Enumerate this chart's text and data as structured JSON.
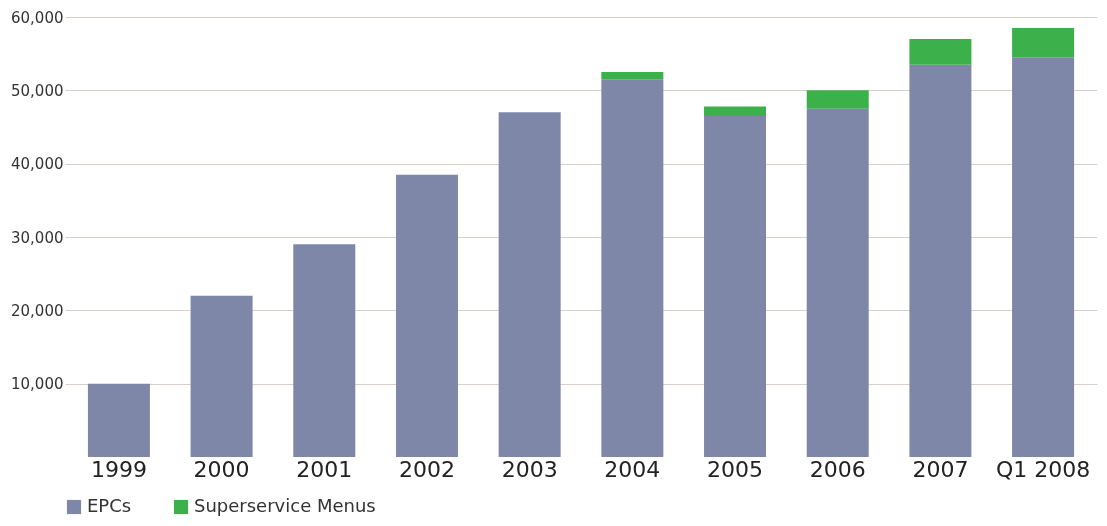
{
  "chart_data": {
    "type": "bar",
    "stacked": true,
    "categories": [
      "1999",
      "2000",
      "2001",
      "2002",
      "2003",
      "2004",
      "2005",
      "2006",
      "2007",
      "Q1 2008"
    ],
    "series": [
      {
        "name": "EPCs",
        "color": "#7e87a8",
        "values": [
          10000,
          22000,
          29000,
          38500,
          47000,
          51500,
          46500,
          47500,
          53500,
          54500
        ]
      },
      {
        "name": "Superservice Menus",
        "color": "#3cb04a",
        "values": [
          0,
          0,
          0,
          0,
          0,
          1000,
          1300,
          2500,
          3500,
          4000
        ]
      }
    ],
    "ylim": [
      0,
      60000
    ],
    "yticks": [
      {
        "value": 10000,
        "label": "10,000"
      },
      {
        "value": 20000,
        "label": "20,000"
      },
      {
        "value": 30000,
        "label": "30,000"
      },
      {
        "value": 40000,
        "label": "40,000"
      },
      {
        "value": 50000,
        "label": "50,000"
      },
      {
        "value": 60000,
        "label": "60,000"
      }
    ],
    "grid": "y",
    "legend": "bottom left"
  }
}
